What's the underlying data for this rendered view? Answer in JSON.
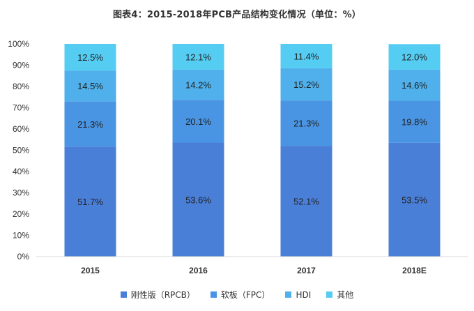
{
  "chart_data": {
    "type": "bar",
    "stacked": true,
    "title": "图表4：2015-2018年PCB产品结构变化情况（单位：%）",
    "categories": [
      "2015",
      "2016",
      "2017",
      "2018E"
    ],
    "series": [
      {
        "name": "刚性版（RPCB）",
        "values": [
          51.7,
          53.6,
          52.1,
          53.5
        ],
        "labels": [
          "51.7%",
          "53.6%",
          "52.1%",
          "53.5%"
        ],
        "color": "#4a7fd8"
      },
      {
        "name": "软板（FPC）",
        "values": [
          21.3,
          20.1,
          21.3,
          19.8
        ],
        "labels": [
          "21.3%",
          "20.1%",
          "21.3%",
          "19.8%"
        ],
        "color": "#4a95e3"
      },
      {
        "name": "HDI",
        "values": [
          14.5,
          14.2,
          15.2,
          14.6
        ],
        "labels": [
          "14.5%",
          "14.2%",
          "15.2%",
          "14.6%"
        ],
        "color": "#4fb0ec"
      },
      {
        "name": "其他",
        "values": [
          12.5,
          12.1,
          11.4,
          12.0
        ],
        "labels": [
          "12.5%",
          "12.1%",
          "11.4%",
          "12.0%"
        ],
        "color": "#55cdf3"
      }
    ],
    "y_ticks": [
      "0%",
      "10%",
      "20%",
      "30%",
      "40%",
      "50%",
      "60%",
      "70%",
      "80%",
      "90%",
      "100%"
    ],
    "ylim": [
      0,
      100
    ],
    "grid": false,
    "legend_position": "bottom"
  }
}
